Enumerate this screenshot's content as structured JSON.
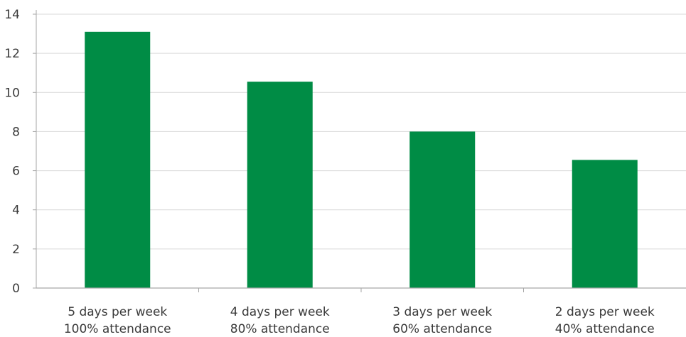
{
  "chart_data": {
    "type": "bar",
    "title": "",
    "xlabel": "",
    "ylabel": "",
    "categories": [
      [
        "5 days per week",
        "100% attendance"
      ],
      [
        "4 days per week",
        "80% attendance"
      ],
      [
        "3 days per week",
        "60% attendance"
      ],
      [
        "2 days per week",
        "40% attendance"
      ]
    ],
    "values": [
      13.1,
      10.55,
      8.0,
      6.55
    ],
    "ylim": [
      0,
      14
    ],
    "yticks": [
      "0",
      "2",
      "4",
      "6",
      "8",
      "10",
      "12",
      "14"
    ],
    "grid": "horizontal",
    "legend": "none",
    "colors": {
      "bar": "#008c45",
      "grid": "#d9d9d9",
      "axis": "#a6a6a6",
      "text": "#3a3a3a"
    }
  }
}
